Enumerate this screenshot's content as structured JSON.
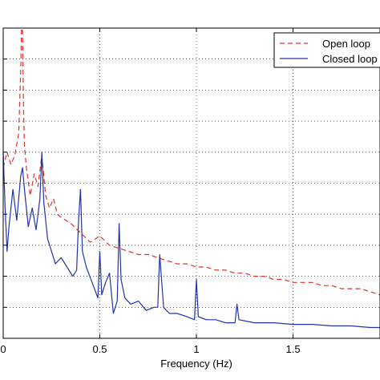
{
  "chart_data": {
    "type": "line",
    "title": "",
    "xlabel": "Frequency (Hz)",
    "ylabel": "",
    "xlim": [
      0,
      1.95
    ],
    "ylim": [
      0,
      10
    ],
    "grid": true,
    "grid_style": "dotted",
    "x_ticks": [
      0,
      0.5,
      1,
      1.5
    ],
    "x_tick_labels": [
      "0",
      "0.5",
      "1",
      "1.5"
    ],
    "y_ticks": [
      1,
      2,
      3,
      4,
      5,
      6,
      7,
      8,
      9
    ],
    "legend_position": "top-right",
    "series": [
      {
        "name": "Open loop",
        "color": "#d9352f",
        "style": "dashed",
        "x": [
          0.0,
          0.02,
          0.04,
          0.06,
          0.08,
          0.09,
          0.095,
          0.1,
          0.105,
          0.11,
          0.12,
          0.14,
          0.16,
          0.18,
          0.2,
          0.22,
          0.24,
          0.26,
          0.28,
          0.3,
          0.35,
          0.4,
          0.45,
          0.5,
          0.55,
          0.6,
          0.65,
          0.7,
          0.75,
          0.8,
          0.85,
          0.9,
          0.95,
          1.0,
          1.05,
          1.1,
          1.15,
          1.2,
          1.25,
          1.3,
          1.35,
          1.4,
          1.45,
          1.5,
          1.55,
          1.6,
          1.65,
          1.7,
          1.75,
          1.8,
          1.85,
          1.9,
          1.95
        ],
        "y": [
          5.5,
          6.0,
          5.6,
          5.9,
          6.6,
          8.5,
          10.0,
          9.9,
          7.5,
          6.2,
          5.5,
          4.6,
          5.3,
          4.9,
          5.9,
          4.6,
          4.2,
          4.5,
          4.0,
          3.9,
          3.7,
          3.4,
          3.1,
          3.3,
          3.0,
          2.9,
          2.8,
          2.7,
          2.7,
          2.6,
          2.5,
          2.4,
          2.4,
          2.3,
          2.3,
          2.2,
          2.2,
          2.1,
          2.1,
          2.0,
          2.0,
          1.9,
          1.9,
          1.8,
          1.8,
          1.8,
          1.7,
          1.7,
          1.6,
          1.6,
          1.6,
          1.5,
          1.4
        ]
      },
      {
        "name": "Closed loop",
        "color": "#2233a8",
        "style": "solid",
        "x": [
          0.0,
          0.01,
          0.02,
          0.03,
          0.05,
          0.07,
          0.09,
          0.1,
          0.11,
          0.13,
          0.15,
          0.17,
          0.19,
          0.2,
          0.21,
          0.23,
          0.25,
          0.27,
          0.3,
          0.33,
          0.36,
          0.38,
          0.39,
          0.4,
          0.41,
          0.43,
          0.46,
          0.49,
          0.5,
          0.51,
          0.53,
          0.55,
          0.57,
          0.59,
          0.6,
          0.61,
          0.63,
          0.66,
          0.7,
          0.74,
          0.78,
          0.8,
          0.81,
          0.83,
          0.86,
          0.9,
          0.95,
          0.99,
          1.0,
          1.01,
          1.05,
          1.1,
          1.15,
          1.2,
          1.21,
          1.22,
          1.3,
          1.4,
          1.5,
          1.6,
          1.7,
          1.8,
          1.9,
          1.95
        ],
        "y": [
          6.0,
          4.2,
          2.8,
          3.6,
          4.8,
          3.8,
          5.2,
          5.5,
          4.8,
          3.6,
          4.2,
          3.5,
          4.5,
          6.0,
          4.4,
          3.2,
          2.8,
          2.4,
          2.6,
          2.3,
          2.0,
          2.2,
          3.8,
          4.8,
          2.8,
          2.3,
          1.8,
          1.3,
          2.8,
          1.4,
          1.8,
          2.1,
          0.8,
          1.2,
          3.7,
          1.9,
          1.3,
          1.1,
          1.2,
          0.9,
          1.0,
          1.0,
          2.7,
          1.0,
          0.8,
          0.8,
          0.7,
          0.6,
          1.9,
          0.7,
          0.6,
          0.6,
          0.5,
          0.5,
          1.1,
          0.6,
          0.5,
          0.5,
          0.45,
          0.45,
          0.4,
          0.4,
          0.35,
          0.35
        ]
      }
    ]
  }
}
